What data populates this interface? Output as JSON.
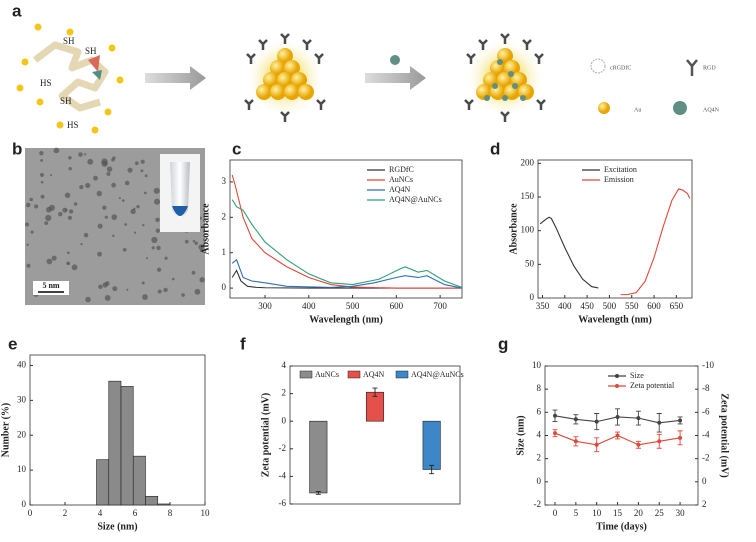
{
  "panels": [
    "a",
    "b",
    "c",
    "d",
    "e",
    "f",
    "g"
  ],
  "schematic": {
    "thiol_labels": [
      "SH",
      "SH",
      "HS",
      "SH",
      "HS"
    ],
    "key": [
      "cRGDfC",
      "RGD",
      "Au",
      "AQ4N"
    ],
    "scale_bar": "5 nm"
  },
  "chart_data": [
    {
      "type": "line",
      "xlabel": "Wavelength (nm)",
      "ylabel": "Absorbance",
      "xlim": [
        220,
        750
      ],
      "ylim": [
        -0.28,
        3.62
      ],
      "xticks": [
        300,
        400,
        500,
        600,
        700
      ],
      "yticks": [
        0,
        1,
        2,
        3
      ],
      "legend": "upper right",
      "series": [
        {
          "name": "RGDfC",
          "color": "#333333",
          "x": [
            225,
            235,
            245,
            260,
            280,
            300,
            400,
            500,
            600,
            700,
            750
          ],
          "values": [
            0.3,
            0.5,
            0.2,
            0.05,
            0.02,
            0.01,
            0,
            0,
            0,
            0,
            0
          ]
        },
        {
          "name": "AuNCs",
          "color": "#e0483a",
          "x": [
            225,
            232,
            250,
            270,
            300,
            350,
            400,
            450,
            500,
            600,
            750
          ],
          "values": [
            3.2,
            2.9,
            2.0,
            1.4,
            1.0,
            0.6,
            0.3,
            0.1,
            0.03,
            0,
            0
          ]
        },
        {
          "name": "AQ4N",
          "color": "#2f6fb5",
          "x": [
            225,
            235,
            250,
            270,
            300,
            350,
            450,
            500,
            550,
            600,
            620,
            650,
            670,
            710,
            750
          ],
          "values": [
            0.7,
            0.8,
            0.3,
            0.2,
            0.15,
            0.05,
            0.02,
            0.05,
            0.15,
            0.3,
            0.35,
            0.3,
            0.35,
            0.1,
            0
          ]
        },
        {
          "name": "AQ4N@AuNCs",
          "color": "#2e9e7a",
          "x": [
            225,
            235,
            250,
            270,
            300,
            350,
            400,
            450,
            500,
            560,
            610,
            620,
            650,
            670,
            710,
            750
          ],
          "values": [
            2.5,
            2.3,
            2.2,
            1.8,
            1.3,
            0.8,
            0.4,
            0.15,
            0.1,
            0.25,
            0.55,
            0.6,
            0.45,
            0.5,
            0.2,
            0.02
          ]
        }
      ]
    },
    {
      "type": "line",
      "xlabel": "Wavelength (nm)",
      "ylabel": "Absorbance",
      "xlim": [
        340,
        685
      ],
      "ylim": [
        0,
        205
      ],
      "xticks": [
        350,
        400,
        450,
        500,
        550,
        600,
        650
      ],
      "yticks": [
        0,
        50,
        100,
        150,
        200
      ],
      "legend": "upper right",
      "series": [
        {
          "name": "Excitation",
          "color": "#333333",
          "x": [
            345,
            350,
            360,
            365,
            370,
            380,
            400,
            420,
            440,
            460,
            475
          ],
          "values": [
            110,
            113,
            118,
            120,
            118,
            105,
            75,
            48,
            28,
            17,
            15
          ]
        },
        {
          "name": "Emission",
          "color": "#e0483a",
          "x": [
            525,
            540,
            560,
            580,
            600,
            620,
            640,
            655,
            665,
            675,
            680
          ],
          "values": [
            5,
            5,
            8,
            25,
            60,
            105,
            145,
            162,
            160,
            155,
            148
          ]
        }
      ]
    },
    {
      "type": "histogram",
      "xlabel": "Size (nm)",
      "ylabel": "Number (%)",
      "xlim": [
        0,
        10
      ],
      "ylim": [
        0,
        43
      ],
      "xticks": [
        0,
        2,
        4,
        6,
        8,
        10
      ],
      "yticks": [
        0,
        10,
        20,
        30,
        40
      ],
      "color": "#8a8a8a",
      "bins": [
        3.8,
        4.5,
        5.2,
        5.9,
        6.6,
        7.3,
        8.0
      ],
      "values": [
        13,
        35.5,
        34,
        14,
        2.5,
        0.3
      ]
    },
    {
      "type": "bar",
      "ylabel": "Zeta potential (mV)",
      "ylim": [
        -6,
        4
      ],
      "yticks": [
        -6,
        -4,
        -2,
        0,
        2,
        4
      ],
      "legend": "upper center",
      "categories": [
        "AuNCs",
        "AQ4N",
        "AQ4N@AuNCs"
      ],
      "colors": [
        "#8c8c8c",
        "#e5504a",
        "#3d87c9"
      ],
      "values": [
        -5.2,
        2.1,
        -3.5
      ],
      "errors": [
        0.1,
        0.3,
        0.3
      ]
    },
    {
      "type": "line",
      "xlabel": "Time (days)",
      "ylabel": "Size (nm)",
      "y2label": "Zeta potential (mV)",
      "xlim": [
        -2.4,
        34.3
      ],
      "ylim": [
        -2,
        10
      ],
      "y2lim": [
        2,
        -10
      ],
      "xticks": [
        0,
        5,
        10,
        15,
        20,
        25,
        30
      ],
      "yticks": [
        -2,
        0,
        2,
        4,
        6,
        8,
        10
      ],
      "y2ticks": [
        2,
        0,
        -2,
        -4,
        -6,
        -8,
        -10
      ],
      "legend": "upper right",
      "markers": true,
      "series": [
        {
          "name": "Size",
          "color": "#444444",
          "x": [
            0,
            5,
            10,
            15,
            20,
            25,
            30
          ],
          "values": [
            5.7,
            5.4,
            5.2,
            5.6,
            5.5,
            5.1,
            5.3
          ],
          "errors": [
            0.5,
            0.4,
            0.7,
            0.7,
            0.6,
            0.8,
            0.3
          ]
        },
        {
          "name": "Zeta potential",
          "color": "#e0483a",
          "axis": "y2",
          "x": [
            0,
            5,
            10,
            15,
            20,
            25,
            30
          ],
          "values": [
            -4.2,
            -3.5,
            -3.2,
            -4.0,
            -3.2,
            -3.5,
            -3.8
          ],
          "errors": [
            0.3,
            0.4,
            0.6,
            0.3,
            0.3,
            0.6,
            0.6
          ]
        }
      ]
    }
  ]
}
